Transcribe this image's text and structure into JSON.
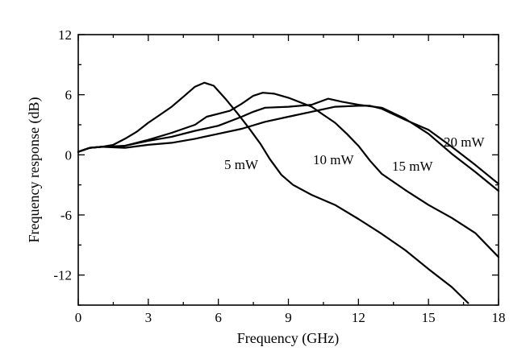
{
  "chart_data": {
    "type": "line",
    "xlabel": "Frequency (GHz)",
    "ylabel": "Frequency response (dB)",
    "xlim": [
      0,
      18
    ],
    "ylim": [
      -15,
      12
    ],
    "x_ticks": [
      0,
      3,
      6,
      9,
      12,
      15,
      18
    ],
    "y_ticks": [
      12,
      6,
      0,
      -6,
      -12
    ],
    "x_tick_labels": [
      "0",
      "3",
      "6",
      "9",
      "12",
      "15",
      "18"
    ],
    "y_tick_labels": [
      "12",
      "6",
      "0",
      "-6",
      "-12"
    ],
    "grid": false,
    "legend": "none",
    "series": [
      {
        "name": "5 mW",
        "points": [
          [
            0,
            0.3
          ],
          [
            0.5,
            0.7
          ],
          [
            1,
            0.8
          ],
          [
            1.5,
            1.0
          ],
          [
            2,
            1.6
          ],
          [
            2.5,
            2.3
          ],
          [
            3,
            3.2
          ],
          [
            3.5,
            4.0
          ],
          [
            4,
            4.8
          ],
          [
            4.5,
            5.8
          ],
          [
            5,
            6.8
          ],
          [
            5.4,
            7.2
          ],
          [
            5.8,
            6.9
          ],
          [
            6.3,
            5.6
          ],
          [
            6.8,
            4.2
          ],
          [
            7.3,
            2.7
          ],
          [
            7.8,
            1.1
          ],
          [
            8.2,
            -0.4
          ],
          [
            8.7,
            -2.0
          ],
          [
            9.2,
            -3.0
          ],
          [
            10,
            -4.0
          ],
          [
            11,
            -5.0
          ],
          [
            12,
            -6.4
          ],
          [
            13,
            -7.9
          ],
          [
            14,
            -9.5
          ],
          [
            15,
            -11.4
          ],
          [
            16,
            -13.2
          ],
          [
            16.7,
            -14.8
          ]
        ]
      },
      {
        "name": "10 mW",
        "points": [
          [
            0,
            0.3
          ],
          [
            0.5,
            0.7
          ],
          [
            1,
            0.8
          ],
          [
            1.5,
            0.8
          ],
          [
            2,
            0.9
          ],
          [
            3,
            1.5
          ],
          [
            4,
            2.2
          ],
          [
            5,
            3.0
          ],
          [
            5.5,
            3.8
          ],
          [
            6,
            4.1
          ],
          [
            6.5,
            4.4
          ],
          [
            7,
            5.1
          ],
          [
            7.5,
            5.9
          ],
          [
            7.9,
            6.2
          ],
          [
            8.4,
            6.1
          ],
          [
            9,
            5.7
          ],
          [
            10,
            4.8
          ],
          [
            10.5,
            4.0
          ],
          [
            11,
            3.2
          ],
          [
            11.5,
            2.1
          ],
          [
            12,
            0.9
          ],
          [
            12.5,
            -0.6
          ],
          [
            13,
            -1.9
          ],
          [
            14,
            -3.5
          ],
          [
            15,
            -5.0
          ],
          [
            16,
            -6.3
          ],
          [
            17,
            -7.8
          ],
          [
            18,
            -10.2
          ]
        ]
      },
      {
        "name": "15 mW",
        "points": [
          [
            0,
            0.3
          ],
          [
            0.5,
            0.7
          ],
          [
            1,
            0.8
          ],
          [
            2,
            0.9
          ],
          [
            3,
            1.4
          ],
          [
            4,
            1.8
          ],
          [
            5,
            2.4
          ],
          [
            6,
            2.9
          ],
          [
            7,
            3.8
          ],
          [
            7.5,
            4.3
          ],
          [
            8,
            4.7
          ],
          [
            9,
            4.8
          ],
          [
            10,
            5.0
          ],
          [
            10.7,
            5.6
          ],
          [
            11.3,
            5.3
          ],
          [
            12,
            5.0
          ],
          [
            13,
            4.7
          ],
          [
            14,
            3.6
          ],
          [
            15,
            2.1
          ],
          [
            16,
            0.1
          ],
          [
            17,
            -1.7
          ],
          [
            18,
            -3.6
          ]
        ]
      },
      {
        "name": "20 mW",
        "points": [
          [
            0,
            0.3
          ],
          [
            0.5,
            0.7
          ],
          [
            1,
            0.8
          ],
          [
            2,
            0.7
          ],
          [
            3,
            1.0
          ],
          [
            4,
            1.2
          ],
          [
            5,
            1.6
          ],
          [
            6,
            2.1
          ],
          [
            7,
            2.6
          ],
          [
            8,
            3.3
          ],
          [
            9,
            3.8
          ],
          [
            10,
            4.3
          ],
          [
            11,
            4.8
          ],
          [
            12,
            4.9
          ],
          [
            12.5,
            4.9
          ],
          [
            13,
            4.6
          ],
          [
            14,
            3.5
          ],
          [
            15,
            2.5
          ],
          [
            16,
            0.8
          ],
          [
            17,
            -1.0
          ],
          [
            18,
            -2.9
          ]
        ]
      }
    ],
    "annotations": [
      "5 mW",
      "10 mW",
      "15 mW",
      "20 mW"
    ]
  }
}
